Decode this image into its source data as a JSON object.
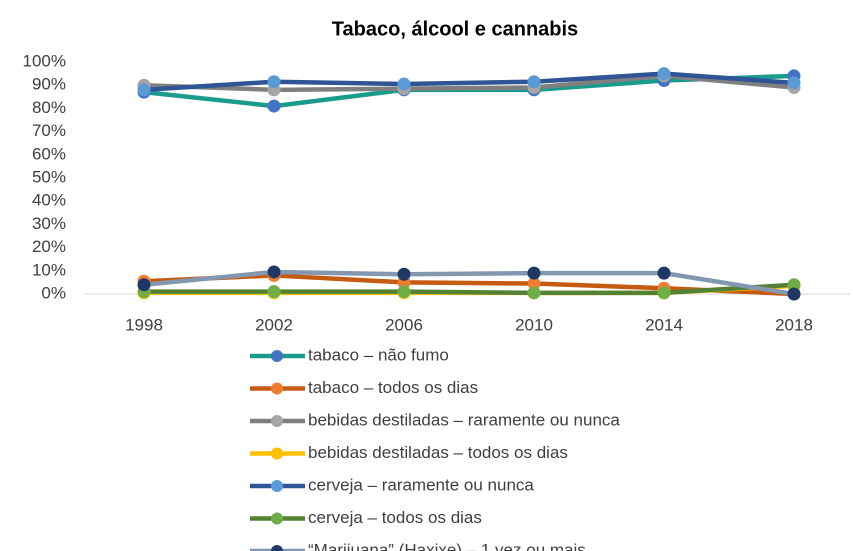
{
  "chart_data": {
    "type": "line",
    "title": "Tabaco, álcool e cannabis",
    "categories": [
      "1998",
      "2002",
      "2006",
      "2010",
      "2014",
      "2018"
    ],
    "ylim": [
      0,
      100
    ],
    "yticks": [
      {
        "value": 0,
        "label": "0%"
      },
      {
        "value": 10,
        "label": "10%"
      },
      {
        "value": 20,
        "label": "20%"
      },
      {
        "value": 30,
        "label": "30%"
      },
      {
        "value": 40,
        "label": "40%"
      },
      {
        "value": 50,
        "label": "50%"
      },
      {
        "value": 60,
        "label": "60%"
      },
      {
        "value": 70,
        "label": "70%"
      },
      {
        "value": 80,
        "label": "80%"
      },
      {
        "value": 90,
        "label": "90%"
      },
      {
        "value": 100,
        "label": "100%"
      }
    ],
    "grid": false,
    "legend": "bottom",
    "series": [
      {
        "name": "tabaco – não fumo",
        "color": "#1a9c8c",
        "marker_color": "#4472c4",
        "values": [
          87,
          81,
          88,
          88,
          92,
          94
        ]
      },
      {
        "name": "tabaco – todos os dias",
        "color": "#c55a11",
        "marker_color": "#ed7d31",
        "values": [
          5.5,
          8,
          5,
          4.5,
          2.5,
          0
        ]
      },
      {
        "name": "bebidas destiladas – raramente ou nunca",
        "color": "#7f7f7f",
        "marker_color": "#a5a5a5",
        "values": [
          90,
          88,
          88.5,
          89,
          94,
          89
        ]
      },
      {
        "name": "bebidas destiladas – todos os dias",
        "color": "#ffc000",
        "marker_color": "#ffc000",
        "values": [
          0.5,
          0.5,
          0.5,
          0.5,
          0.5,
          3.5
        ]
      },
      {
        "name": " cerveja – raramente ou nunca",
        "color": "#2f5597",
        "marker_color": "#5b9bd5",
        "values": [
          88,
          91.5,
          90.5,
          91.5,
          95,
          91
        ]
      },
      {
        "name": " cerveja – todos os dias",
        "color": "#548235",
        "marker_color": "#70ad47",
        "values": [
          1,
          1,
          1,
          0.5,
          0.5,
          4
        ]
      },
      {
        "name": "“Marijuana” (Haxixe) – 1 vez ou mais",
        "color": "#8497b0",
        "marker_color": "#1f3864",
        "values": [
          4,
          9.5,
          8.5,
          9,
          9,
          0
        ]
      }
    ]
  }
}
